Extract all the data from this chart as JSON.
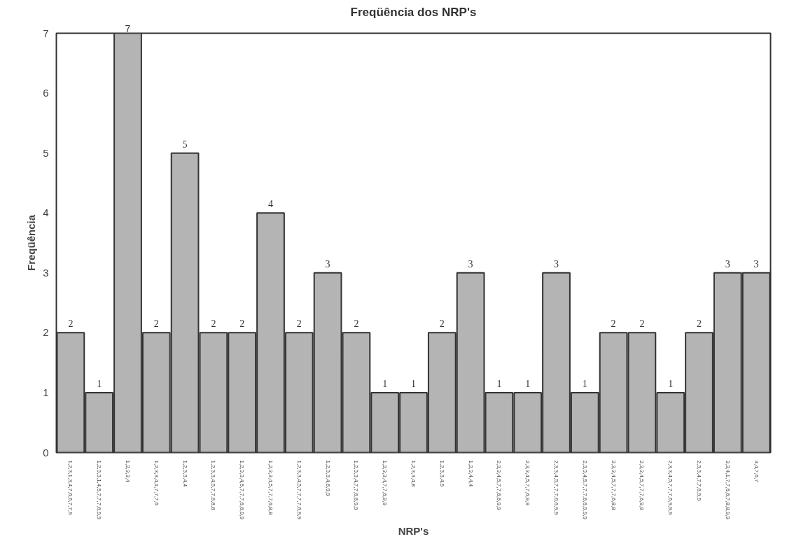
{
  "chart_data": {
    "type": "bar",
    "title": "Freqüência dos NRP's",
    "xlabel": "NRP's",
    "ylabel": "Freqüência",
    "categories": [
      "1,2,3,1,3,4,7,6,6,7,7,9",
      "1,2,3,3,1,4,5,7,7,7,6,9,9",
      "1,2,3,3,4",
      "1,2,3,3,4,1,7,7,7,6",
      "1,2,3,3,4,4",
      "1,2,3,3,4,5,7,7,6,8,8",
      "1,2,3,3,4,5,7,7,7,6,6,9,9",
      "1,2,3,3,4,5,7,7,7,6,8,8",
      "1,2,3,3,4,5,7,7,7,7,6,9,9",
      "1,2,3,3,4,6,9,9",
      "1,2,3,3,4,7,7,6,6,9,9",
      "1,2,3,3,4,7,7,6,9,9",
      "1,2,3,3,4,8",
      "1,2,3,3,4,9",
      "1,2,3,4,4,4",
      "2,3,3,4,5,7,7,6,6,9,9",
      "2,3,3,4,5,7,7,6,9,9",
      "2,3,3,4,5,7,7,7,6,6,9,9",
      "2,3,3,4,5,7,7,7,6,6,9,9,9",
      "2,3,3,4,5,7,7,7,6,8,8",
      "2,3,3,4,5,7,7,7,6,9,9",
      "2,3,3,4,5,7,7,7,6,9,9,9",
      "2,3,3,4,7,7,6,9,9",
      "3,3,4,1,7,7,6,6,7,8,8,9,9",
      "3,4,7,6,7"
    ],
    "values": [
      2,
      1,
      7,
      2,
      5,
      2,
      2,
      4,
      2,
      3,
      2,
      1,
      1,
      2,
      3,
      1,
      1,
      3,
      1,
      2,
      2,
      1,
      2,
      3,
      3
    ],
    "color": "#b4b4b4",
    "ylim": [
      0,
      7
    ],
    "yticks": [
      0,
      1,
      2,
      3,
      4,
      5,
      6,
      7
    ],
    "grid": false,
    "data_labels": true
  }
}
